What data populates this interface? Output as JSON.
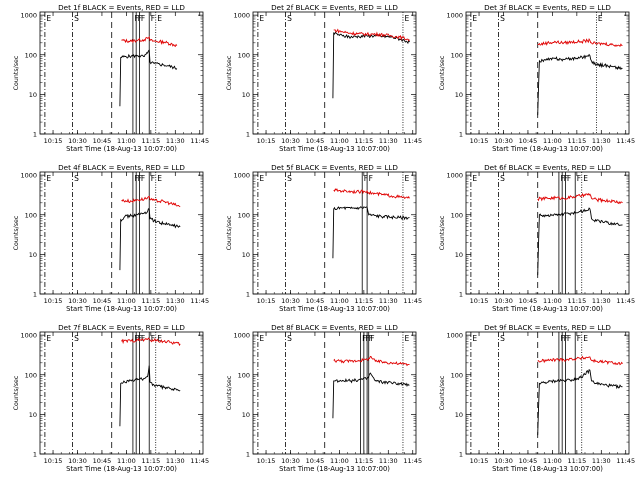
{
  "panels_meta": {
    "ylabel": "Counts/sec",
    "xlabel": "Start Time (18-Aug-13 10:07:00)",
    "x_tick_labels": [
      "10:15",
      "10:30",
      "10:45",
      "11:00",
      "11:15",
      "11:30",
      "11:45"
    ],
    "y_tick_labels": [
      "1",
      "10",
      "100",
      "1000"
    ],
    "marker_labels": {
      "E": "E",
      "S": "S",
      "F": "F"
    },
    "colors": {
      "events": "#000000",
      "lld": "#e00000",
      "axes": "#000000"
    }
  },
  "chart_data": [
    {
      "type": "line",
      "title": "Det 1f BLACK = Events, RED = LLD",
      "xlabel": "Start Time (18-Aug-13 10:07:00)",
      "ylabel": "Counts/sec",
      "x_unit": "minutes after 10:07:00",
      "xlim": [
        0,
        100
      ],
      "ylim": [
        1,
        1200
      ],
      "y_scale": "log",
      "vlines_dashdot": [
        3,
        20
      ],
      "vlines_dashed": [
        44
      ],
      "vlines_solid": [
        57,
        59,
        61,
        67
      ],
      "vlines_dotted": [
        71
      ],
      "series": [
        {
          "key": "events",
          "x": [
            49,
            49.5,
            52,
            56,
            60,
            64,
            66,
            67,
            67.5,
            70,
            76,
            79,
            84
          ],
          "y": [
            5,
            85,
            90,
            92,
            95,
            90,
            110,
            130,
            65,
            60,
            55,
            52,
            45
          ]
        },
        {
          "key": "lld",
          "x": [
            50,
            56,
            60,
            64,
            66,
            67,
            67.5,
            70,
            76,
            84
          ],
          "y": [
            230,
            220,
            235,
            240,
            260,
            280,
            230,
            220,
            210,
            170
          ]
        }
      ]
    },
    {
      "type": "line",
      "title": "Det 2f BLACK = Events, RED = LLD",
      "xlabel": "Start Time (18-Aug-13 10:07:00)",
      "ylabel": "Counts/sec",
      "x_unit": "minutes after 10:07:00",
      "xlim": [
        0,
        100
      ],
      "ylim": [
        1,
        1200
      ],
      "y_scale": "log",
      "vlines_dashdot": [
        3,
        20
      ],
      "vlines_dashed": [
        44
      ],
      "vlines_solid": [],
      "vlines_dotted": [
        92
      ],
      "series": [
        {
          "key": "events",
          "x": [
            49,
            49.5,
            55,
            60,
            65,
            70,
            75,
            80,
            85,
            90,
            96
          ],
          "y": [
            8,
            350,
            300,
            280,
            290,
            300,
            300,
            290,
            280,
            250,
            210
          ]
        },
        {
          "key": "lld",
          "x": [
            49.5,
            55,
            60,
            65,
            70,
            75,
            80,
            85,
            90,
            96
          ],
          "y": [
            420,
            380,
            350,
            340,
            330,
            330,
            320,
            300,
            280,
            240
          ]
        }
      ]
    },
    {
      "type": "line",
      "title": "Det 3f BLACK = Events, RED = LLD",
      "xlabel": "Start Time (18-Aug-13 10:07:00)",
      "ylabel": "Counts/sec",
      "x_unit": "minutes after 10:07:00",
      "xlim": [
        0,
        100
      ],
      "ylim": [
        1,
        1200
      ],
      "y_scale": "log",
      "vlines_dashdot": [
        3,
        20
      ],
      "vlines_dashed": [
        44
      ],
      "vlines_solid": [],
      "vlines_dotted": [
        80
      ],
      "series": [
        {
          "key": "events",
          "x": [
            44,
            45,
            50,
            55,
            60,
            65,
            70,
            76,
            77,
            80,
            85,
            90,
            96
          ],
          "y": [
            3,
            70,
            75,
            80,
            75,
            80,
            85,
            95,
            70,
            55,
            55,
            50,
            45
          ]
        },
        {
          "key": "lld",
          "x": [
            44,
            50,
            55,
            60,
            65,
            70,
            76,
            77,
            80,
            85,
            90,
            96
          ],
          "y": [
            180,
            200,
            210,
            200,
            210,
            215,
            230,
            200,
            190,
            190,
            180,
            170
          ]
        }
      ]
    },
    {
      "type": "line",
      "title": "Det 4f BLACK = Events, RED = LLD",
      "xlabel": "Start Time (18-Aug-13 10:07:00)",
      "ylabel": "Counts/sec",
      "x_unit": "minutes after 10:07:00",
      "xlim": [
        0,
        100
      ],
      "ylim": [
        1,
        1200
      ],
      "y_scale": "log",
      "vlines_dashdot": [
        3,
        20
      ],
      "vlines_dashed": [
        44
      ],
      "vlines_solid": [
        57,
        59,
        61,
        67
      ],
      "vlines_dotted": [
        71
      ],
      "series": [
        {
          "key": "events",
          "x": [
            49,
            49.5,
            52,
            56,
            60,
            64,
            66,
            67,
            67.5,
            70,
            76,
            80,
            86
          ],
          "y": [
            4,
            75,
            90,
            95,
            100,
            110,
            120,
            140,
            80,
            70,
            60,
            55,
            50
          ]
        },
        {
          "key": "lld",
          "x": [
            50,
            56,
            60,
            64,
            66,
            67,
            67.5,
            70,
            76,
            80,
            86
          ],
          "y": [
            230,
            220,
            240,
            250,
            270,
            290,
            240,
            230,
            215,
            195,
            160
          ]
        }
      ]
    },
    {
      "type": "line",
      "title": "Det 5f BLACK = Events, RED = LLD",
      "xlabel": "Start Time (18-Aug-13 10:07:00)",
      "ylabel": "Counts/sec",
      "x_unit": "minutes after 10:07:00",
      "xlim": [
        0,
        100
      ],
      "ylim": [
        1,
        1200
      ],
      "y_scale": "log",
      "vlines_dashdot": [
        3,
        20
      ],
      "vlines_dashed": [
        44
      ],
      "vlines_solid": [
        67,
        70
      ],
      "vlines_dotted": [
        92
      ],
      "series": [
        {
          "key": "events",
          "x": [
            49,
            49.5,
            55,
            60,
            65,
            70,
            71,
            75,
            80,
            85,
            90,
            96
          ],
          "y": [
            8,
            140,
            150,
            145,
            150,
            155,
            100,
            95,
            90,
            88,
            85,
            85
          ]
        },
        {
          "key": "lld",
          "x": [
            49.5,
            55,
            60,
            65,
            70,
            71,
            75,
            80,
            85,
            90,
            96
          ],
          "y": [
            420,
            400,
            390,
            380,
            400,
            360,
            340,
            320,
            300,
            280,
            260
          ]
        }
      ]
    },
    {
      "type": "line",
      "title": "Det 6f BLACK = Events, RED = LLD",
      "xlabel": "Start Time (18-Aug-13 10:07:00)",
      "ylabel": "Counts/sec",
      "x_unit": "minutes after 10:07:00",
      "xlim": [
        0,
        100
      ],
      "ylim": [
        1,
        1200
      ],
      "y_scale": "log",
      "vlines_dashdot": [
        3,
        20
      ],
      "vlines_dashed": [
        44
      ],
      "vlines_solid": [
        57,
        59,
        61,
        67
      ],
      "vlines_dotted": [
        71
      ],
      "series": [
        {
          "key": "events",
          "x": [
            44,
            45,
            50,
            55,
            60,
            65,
            70,
            76,
            77,
            80,
            85,
            90,
            96
          ],
          "y": [
            3,
            100,
            95,
            100,
            105,
            110,
            120,
            140,
            80,
            70,
            65,
            60,
            55
          ]
        },
        {
          "key": "lld",
          "x": [
            44,
            50,
            55,
            60,
            65,
            70,
            76,
            77,
            80,
            85,
            90,
            96
          ],
          "y": [
            250,
            260,
            270,
            260,
            280,
            300,
            330,
            260,
            240,
            230,
            220,
            200
          ]
        }
      ]
    },
    {
      "type": "line",
      "title": "Det 7f BLACK = Events, RED = LLD",
      "xlabel": "Start Time (18-Aug-13 10:07:00)",
      "ylabel": "Counts/sec",
      "x_unit": "minutes after 10:07:00",
      "xlim": [
        0,
        100
      ],
      "ylim": [
        1,
        1200
      ],
      "y_scale": "log",
      "vlines_dashdot": [
        3,
        20
      ],
      "vlines_dashed": [
        44
      ],
      "vlines_solid": [
        57,
        59,
        61,
        67
      ],
      "vlines_dotted": [
        71
      ],
      "series": [
        {
          "key": "events",
          "x": [
            49,
            49.5,
            52,
            56,
            60,
            64,
            66,
            67,
            67.5,
            70,
            76,
            80,
            86
          ],
          "y": [
            5,
            60,
            65,
            70,
            75,
            80,
            90,
            170,
            65,
            55,
            48,
            45,
            40
          ]
        },
        {
          "key": "lld",
          "x": [
            50,
            56,
            60,
            64,
            66,
            67,
            67.5,
            70,
            76,
            80,
            86
          ],
          "y": [
            700,
            720,
            750,
            760,
            780,
            800,
            760,
            740,
            700,
            660,
            600
          ]
        }
      ]
    },
    {
      "type": "line",
      "title": "Det 8f BLACK = Events, RED = LLD",
      "xlabel": "Start Time (18-Aug-13 10:07:00)",
      "ylabel": "Counts/sec",
      "x_unit": "minutes after 10:07:00",
      "xlim": [
        0,
        100
      ],
      "ylim": [
        1,
        1200
      ],
      "y_scale": "log",
      "vlines_dashdot": [
        3,
        20
      ],
      "vlines_dashed": [
        44
      ],
      "vlines_solid": [
        66,
        68,
        70,
        71
      ],
      "vlines_dotted": [
        92
      ],
      "series": [
        {
          "key": "events",
          "x": [
            49,
            49.5,
            55,
            60,
            65,
            70,
            71,
            72,
            75,
            80,
            85,
            90,
            96
          ],
          "y": [
            8,
            70,
            72,
            70,
            75,
            80,
            90,
            110,
            70,
            65,
            62,
            60,
            55
          ]
        },
        {
          "key": "lld",
          "x": [
            49.5,
            55,
            60,
            65,
            70,
            71,
            72,
            75,
            80,
            85,
            90,
            96
          ],
          "y": [
            230,
            220,
            220,
            230,
            240,
            260,
            290,
            220,
            210,
            200,
            190,
            180
          ]
        }
      ]
    },
    {
      "type": "line",
      "title": "Det 9f BLACK = Events, RED = LLD",
      "xlabel": "Start Time (18-Aug-13 10:07:00)",
      "ylabel": "Counts/sec",
      "x_unit": "minutes after 10:07:00",
      "xlim": [
        0,
        100
      ],
      "ylim": [
        1,
        1200
      ],
      "y_scale": "log",
      "vlines_dashdot": [
        3,
        20
      ],
      "vlines_dashed": [
        44
      ],
      "vlines_solid": [
        57,
        59,
        61,
        67
      ],
      "vlines_dotted": [
        71
      ],
      "series": [
        {
          "key": "events",
          "x": [
            44,
            45,
            50,
            55,
            60,
            65,
            70,
            76,
            77,
            80,
            85,
            90,
            96
          ],
          "y": [
            3,
            60,
            65,
            70,
            72,
            75,
            85,
            130,
            70,
            60,
            55,
            52,
            50
          ]
        },
        {
          "key": "lld",
          "x": [
            44,
            50,
            55,
            60,
            65,
            70,
            76,
            77,
            80,
            85,
            90,
            96
          ],
          "y": [
            220,
            230,
            240,
            240,
            250,
            260,
            280,
            230,
            220,
            210,
            200,
            190
          ]
        }
      ]
    }
  ]
}
